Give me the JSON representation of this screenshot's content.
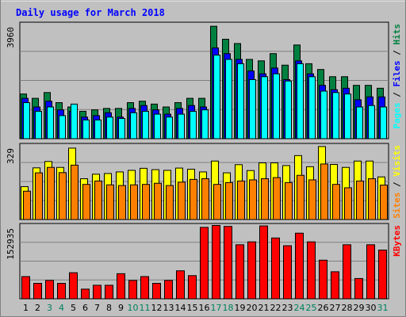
{
  "chart_data": {
    "type": "bar",
    "title": "Daily usage for March 2018",
    "categories": [
      "1",
      "2",
      "3",
      "4",
      "5",
      "6",
      "7",
      "8",
      "9",
      "10",
      "11",
      "12",
      "13",
      "14",
      "15",
      "16",
      "17",
      "18",
      "19",
      "20",
      "21",
      "22",
      "23",
      "24",
      "25",
      "26",
      "27",
      "28",
      "29",
      "30",
      "31"
    ],
    "weekend_days": [
      "3",
      "4",
      "10",
      "11",
      "17",
      "18",
      "24",
      "25",
      "31"
    ],
    "panels": [
      {
        "id": "hits",
        "ymax_label": "3960",
        "ymax": 3960,
        "legend": [
          "Pages",
          "Files",
          "Hits"
        ],
        "series": [
          {
            "name": "Hits",
            "color": "#008040",
            "values": [
              1550,
              1400,
              1600,
              1250,
              1100,
              950,
              1000,
              1050,
              1050,
              1250,
              1300,
              1200,
              1100,
              1250,
              1400,
              1400,
              3900,
              3450,
              3300,
              2750,
              2700,
              2950,
              2550,
              3250,
              2600,
              2400,
              2150,
              2150,
              1850,
              1850,
              1750
            ]
          },
          {
            "name": "Files",
            "color": "#0000ff",
            "values": [
              1400,
              1100,
              1300,
              1000,
              950,
              750,
              800,
              900,
              750,
              1050,
              1150,
              1000,
              850,
              1050,
              1150,
              1100,
              3150,
              2950,
              2750,
              2350,
              2250,
              2450,
              2050,
              2700,
              2250,
              1850,
              1700,
              1750,
              1350,
              1450,
              1450
            ]
          },
          {
            "name": "Pages",
            "color": "#00ffff",
            "values": [
              1250,
              950,
              1100,
              800,
              1200,
              650,
              650,
              750,
              700,
              900,
              950,
              850,
              750,
              850,
              950,
              1000,
              2900,
              2750,
              2600,
              2050,
              2150,
              2250,
              2000,
              2600,
              2150,
              1650,
              1600,
              1550,
              1100,
              1150,
              1100
            ]
          }
        ]
      },
      {
        "id": "visits",
        "ymax_label": "329",
        "ymax": 329,
        "legend": [
          "Sites",
          "Visits"
        ],
        "series": [
          {
            "name": "Visits",
            "color": "#ffff00",
            "values": [
              145,
              228,
              256,
              230,
              315,
              180,
              200,
              203,
              210,
              217,
              226,
              220,
              217,
              227,
              222,
              210,
              258,
              206,
              242,
              216,
              250,
              250,
              238,
              282,
              233,
              322,
              243,
              230,
              258,
              258,
              188
            ]
          },
          {
            "name": "Sites",
            "color": "#ff8000",
            "values": [
              125,
              206,
              230,
              207,
              240,
              155,
              170,
              153,
              150,
              153,
              155,
              160,
              150,
              165,
              177,
              180,
              155,
              163,
              170,
              175,
              180,
              185,
              163,
              195,
              175,
              245,
              155,
              140,
              170,
              180,
              152
            ]
          }
        ]
      },
      {
        "id": "kbytes",
        "ymax_label": "152935",
        "ymax": 152935,
        "legend": [
          "KBytes"
        ],
        "series": [
          {
            "name": "KBytes",
            "color": "#ff0000",
            "values": [
              46000,
              32000,
              38000,
              32000,
              54000,
              20000,
              28000,
              28000,
              52000,
              38000,
              46000,
              32000,
              38000,
              58000,
              48000,
              148000,
              152000,
              150000,
              112000,
              118000,
              151000,
              126000,
              110000,
              136000,
              118000,
              80000,
              56000,
              112000,
              42000,
              112000,
              101000
            ]
          }
        ]
      }
    ]
  }
}
